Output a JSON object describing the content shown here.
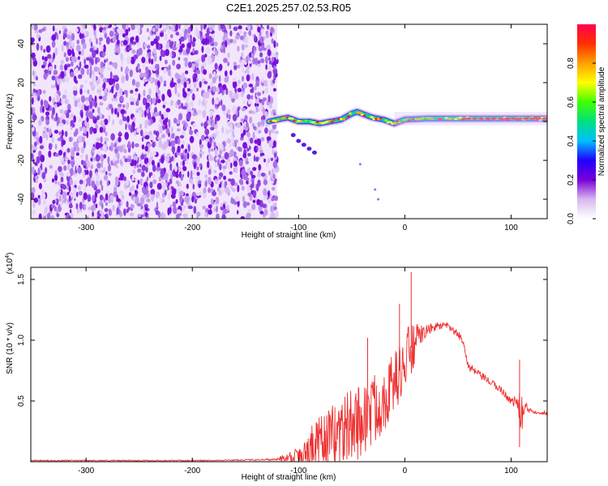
{
  "title": "C2E1.2025.257.02.53.R05",
  "chart_data": [
    {
      "type": "heatmap",
      "title": "C2E1.2025.257.02.53.R05",
      "xlabel": "Height of straight line (km)",
      "ylabel": "Frequency (Hz)",
      "xlim": [
        -352,
        134
      ],
      "ylim": [
        -50,
        50
      ],
      "xticks": [
        -300,
        -200,
        -100,
        0,
        100
      ],
      "xtick_labels": [
        "-300",
        "-200",
        "-100",
        "0",
        "100"
      ],
      "yticks": [
        -40,
        -20,
        0,
        20,
        40
      ],
      "ytick_labels": [
        "-40",
        "-20",
        "0",
        "20",
        "40"
      ],
      "noise_region_x": [
        -352,
        -120
      ],
      "ridge": {
        "x": [
          -128,
          -120,
          -110,
          -100,
          -90,
          -80,
          -70,
          -60,
          -50,
          -45,
          -40,
          -30,
          -20,
          -10,
          0,
          20,
          40,
          60,
          80,
          100,
          120,
          134
        ],
        "y": [
          0,
          1,
          2,
          0,
          0,
          -1,
          0,
          1,
          4,
          5,
          4,
          2,
          1,
          -1,
          1,
          1.5,
          1.5,
          1.5,
          1.5,
          1.5,
          1.5,
          1.5
        ]
      },
      "fainter_track": {
        "x": [
          -105,
          -100,
          -95,
          -90,
          -85
        ],
        "y": [
          -7,
          -10,
          -12,
          -14,
          -16
        ]
      },
      "scattered_points": [
        [
          -42,
          -22
        ],
        [
          -28,
          -35
        ],
        [
          -25,
          -40
        ]
      ],
      "colorbar": {
        "label": "Normalized spectral amplitude",
        "range": [
          0.0,
          1.0
        ],
        "ticks": [
          0.0,
          0.2,
          0.4,
          0.6,
          0.8
        ],
        "tick_labels": [
          "0.0",
          "0.2",
          "0.4",
          "0.6",
          "0.8"
        ],
        "colors": [
          "#ffffff",
          "#d8b8f0",
          "#7a00d8",
          "#2000ff",
          "#00c0ff",
          "#00e080",
          "#40ff00",
          "#ffff00",
          "#ffa000",
          "#ff3000",
          "#ff0050"
        ]
      }
    },
    {
      "type": "line",
      "xlabel": "Height of straight line (km)",
      "ylabel": "SNR (10 * v/v)",
      "ylabel_multiplier": "(x10",
      "ylabel_multiplier_exp": "4",
      "ylabel_multiplier_close": ")",
      "xlim": [
        -352,
        134
      ],
      "ylim": [
        0.0,
        1.6
      ],
      "xticks": [
        -300,
        -200,
        -100,
        0,
        100
      ],
      "xtick_labels": [
        "-300",
        "-200",
        "-100",
        "0",
        "100"
      ],
      "yticks": [
        0.5,
        1.0,
        1.5
      ],
      "ytick_labels": [
        "0.5",
        "1.0",
        "1.5"
      ],
      "color": "#ee3030",
      "series": [
        {
          "name": "SNR",
          "x": [
            -352,
            -300,
            -250,
            -200,
            -150,
            -120,
            -110,
            -100,
            -90,
            -80,
            -70,
            -60,
            -50,
            -40,
            -30,
            -20,
            -10,
            0,
            5,
            10,
            15,
            20,
            30,
            40,
            50,
            55,
            60,
            70,
            80,
            90,
            100,
            105,
            110,
            115,
            120,
            134
          ],
          "mean": [
            0.01,
            0.01,
            0.01,
            0.01,
            0.015,
            0.02,
            0.04,
            0.07,
            0.12,
            0.17,
            0.22,
            0.28,
            0.33,
            0.38,
            0.45,
            0.55,
            0.68,
            0.82,
            0.92,
            1.0,
            1.05,
            1.08,
            1.12,
            1.12,
            1.05,
            1.0,
            0.78,
            0.72,
            0.66,
            0.6,
            0.5,
            0.5,
            0.42,
            0.44,
            0.42,
            0.4
          ],
          "jitter": [
            0.005,
            0.005,
            0.005,
            0.005,
            0.005,
            0.01,
            0.05,
            0.1,
            0.18,
            0.22,
            0.25,
            0.3,
            0.3,
            0.32,
            0.3,
            0.28,
            0.25,
            0.22,
            0.3,
            0.15,
            0.08,
            0.05,
            0.03,
            0.03,
            0.03,
            0.03,
            0.04,
            0.03,
            0.03,
            0.03,
            0.03,
            0.05,
            0.2,
            0.04,
            0.02,
            0.02
          ],
          "peaks": [
            [
              6,
              1.56
            ],
            [
              -5,
              1.3
            ],
            [
              -35,
              1.02
            ],
            [
              108,
              0.84
            ],
            [
              108,
              0.12
            ]
          ]
        }
      ]
    }
  ]
}
